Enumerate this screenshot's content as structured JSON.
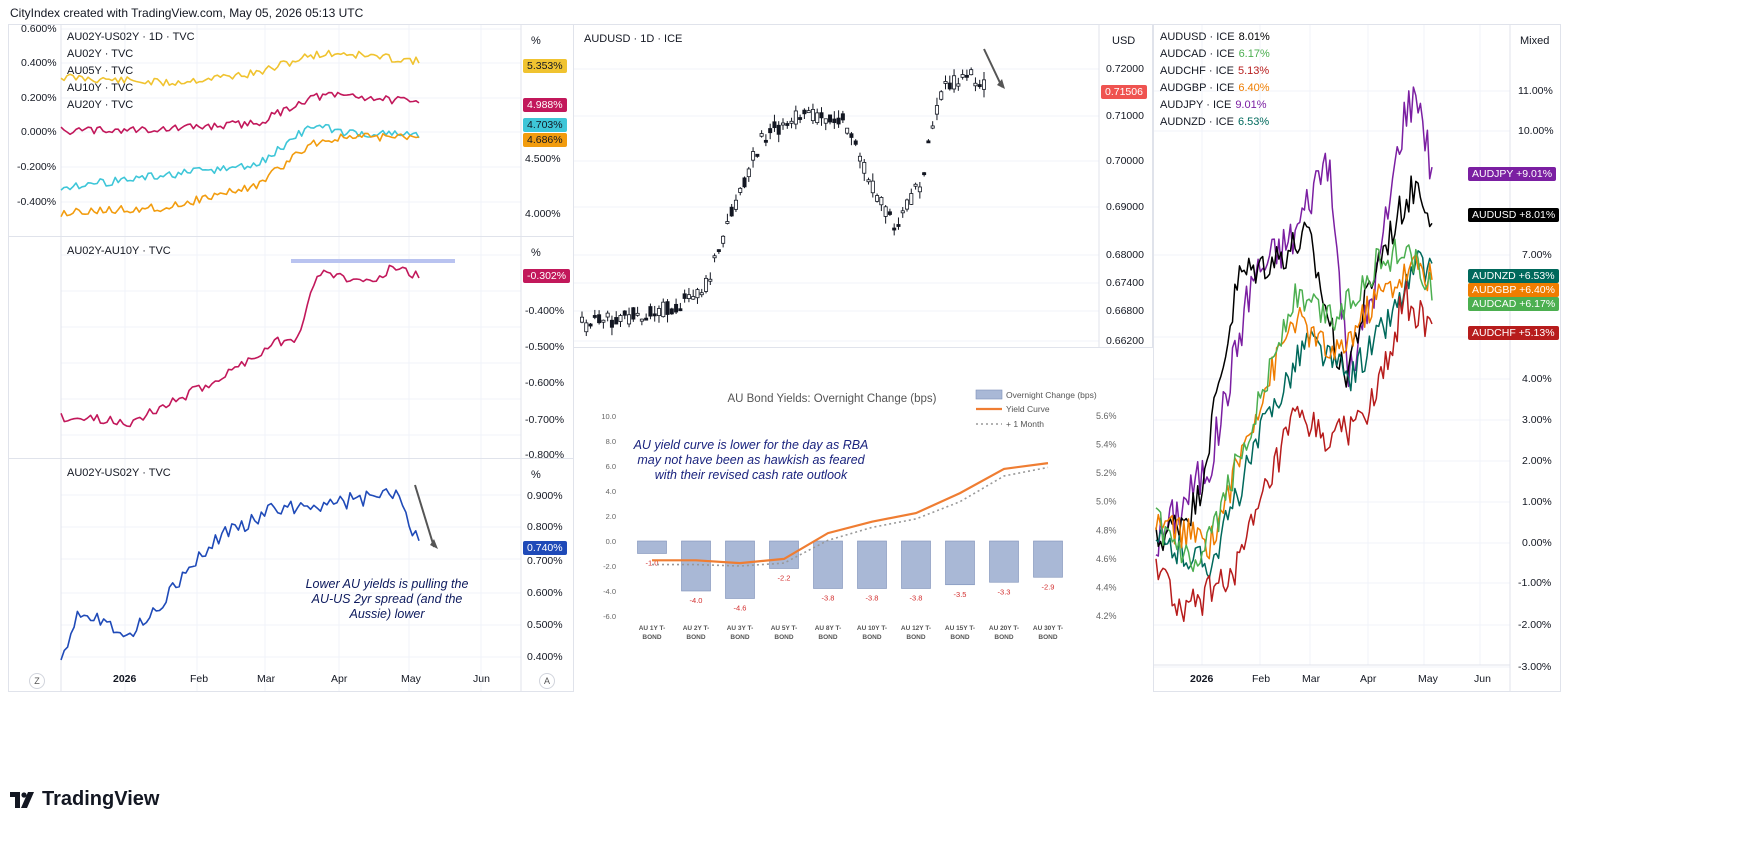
{
  "header": {
    "credit": "CityIndex created with TradingView.com, May 05, 2026 05:13 UTC"
  },
  "footer": {
    "brand": "TradingView",
    "btn_z": "Z",
    "btn_a": "A"
  },
  "colors": {
    "gold": "#f0c330",
    "crimson": "#c2185b",
    "teal": "#3ec6d8",
    "orange": "#f29c0e",
    "blue": "#1f4ab8",
    "purple": "#7b1fa2",
    "black": "#000000",
    "green": "#4caf50",
    "darkteal": "#00695c",
    "darkorange": "#ef7d00",
    "red": "#b71c1c",
    "accent": "#ef5350"
  },
  "panel1": {
    "legend": [
      {
        "name": "AU02Y-US02Y · 1D · TVC"
      },
      {
        "name": "AU02Y · TVC"
      },
      {
        "name": "AU05Y · TVC"
      },
      {
        "name": "AU10Y · TVC"
      },
      {
        "name": "AU20Y · TVC"
      }
    ],
    "left_ticks": [
      "0.600%",
      "0.400%",
      "0.200%",
      "0.000%",
      "-0.200%",
      "-0.400%"
    ],
    "right_ticks": [
      "4.500%",
      "4.000%"
    ],
    "unit": "%",
    "badges": [
      {
        "text": "5.353%",
        "color": "#f0c330",
        "fg": "#131722"
      },
      {
        "text": "4.988%",
        "color": "#c2185b",
        "fg": "#ffffff"
      },
      {
        "text": "4.703%",
        "color": "#3ec6d8",
        "fg": "#131722"
      },
      {
        "text": "4.686%",
        "color": "#f29c0e",
        "fg": "#131722"
      }
    ]
  },
  "panel2": {
    "legend": "AU02Y-AU10Y · TVC",
    "unit": "%",
    "right_ticks": [
      "-0.400%",
      "-0.500%",
      "-0.600%",
      "-0.700%",
      "-0.800%"
    ],
    "badge": {
      "text": "-0.302%",
      "color": "#c2185b"
    }
  },
  "panel3": {
    "legend": "AU02Y-US02Y · TVC",
    "unit": "%",
    "right_ticks": [
      "0.900%",
      "0.800%",
      "0.700%",
      "0.600%",
      "0.500%",
      "0.400%"
    ],
    "badge": {
      "text": "0.740%",
      "color": "#1f4ab8"
    },
    "note": "Lower AU yields is pulling the AU-US 2yr spread (and the Aussie) lower",
    "x_ticks": [
      "2026",
      "Feb",
      "Mar",
      "Apr",
      "May",
      "Jun"
    ]
  },
  "panel4": {
    "legend": "AUDUSD · 1D · ICE",
    "unit": "USD",
    "right_ticks": [
      "0.72000",
      "0.71000",
      "0.70000",
      "0.69000",
      "0.68000",
      "0.67400",
      "0.66800",
      "0.66200"
    ],
    "badge": {
      "text": "0.71506",
      "color": "#ef5350"
    }
  },
  "panel5": {
    "legend": [
      {
        "name": "AUDUSD · ICE",
        "value": "8.01%",
        "color": "#000000"
      },
      {
        "name": "AUDCAD · ICE",
        "value": "6.17%",
        "color": "#4caf50"
      },
      {
        "name": "AUDCHF · ICE",
        "value": "5.13%",
        "color": "#b71c1c"
      },
      {
        "name": "AUDGBP · ICE",
        "value": "6.40%",
        "color": "#ef7d00"
      },
      {
        "name": "AUDJPY · ICE",
        "value": "9.01%",
        "color": "#7b1fa2"
      },
      {
        "name": "AUDNZD · ICE",
        "value": "6.53%",
        "color": "#00695c"
      }
    ],
    "mode": "Mixed",
    "right_ticks": [
      "11.00%",
      "10.00%",
      "7.00%",
      "5.00%",
      "4.00%",
      "3.00%",
      "2.00%",
      "1.00%",
      "0.00%",
      "-1.00%",
      "-2.00%",
      "-3.00%"
    ],
    "badges": [
      {
        "name": "AUDJPY",
        "value": "+9.01%",
        "color": "#7b1fa2"
      },
      {
        "name": "AUDUSD",
        "value": "+8.01%",
        "color": "#000000"
      },
      {
        "name": "AUDNZD",
        "value": "+6.53%",
        "color": "#00695c"
      },
      {
        "name": "AUDGBP",
        "value": "+6.40%",
        "color": "#ef7d00"
      },
      {
        "name": "AUDCAD",
        "value": "+6.17%",
        "color": "#4caf50"
      },
      {
        "name": "AUDCHF",
        "value": "+5.13%",
        "color": "#b71c1c"
      }
    ],
    "x_ticks": [
      "2026",
      "Feb",
      "Mar",
      "Apr",
      "May",
      "Jun"
    ]
  },
  "chart_data": {
    "type": "bar",
    "title": "AU Bond Yields: Overnight Change (bps)",
    "note": "AU yield curve is lower for the day as RBA may not have been as hawkish as feared with their revised cash rate outlook",
    "categories": [
      "AU 1Y T-BOND",
      "AU 2Y T-BOND",
      "AU 3Y T-BOND",
      "AU 5Y T-BOND",
      "AU 8Y T-BOND",
      "AU 10Y T-BOND",
      "AU 12Y T-BOND",
      "AU 15Y T-BOND",
      "AU 20Y T-BOND",
      "AU 30Y T-BOND"
    ],
    "series": [
      {
        "name": "Overnight Change (bps)",
        "type": "bar",
        "axis": "left",
        "values": [
          -1.0,
          -4.0,
          -4.6,
          -2.2,
          -3.8,
          -3.8,
          -3.8,
          -3.5,
          -3.3,
          -2.9
        ],
        "labels": [
          "-1.0",
          "-4.0",
          "-4.6",
          "-2.2",
          "-3.8",
          "-3.8",
          "-3.8",
          "-3.5",
          "-3.3",
          "-2.9"
        ]
      },
      {
        "name": "Yield Curve",
        "type": "line",
        "axis": "right",
        "values": [
          4.59,
          4.59,
          4.57,
          4.6,
          4.78,
          4.86,
          4.92,
          5.06,
          5.23,
          5.27
        ]
      },
      {
        "name": "+ 1 Month",
        "type": "line",
        "axis": "right",
        "dashed": true,
        "values": [
          4.56,
          4.56,
          4.55,
          4.57,
          4.73,
          4.82,
          4.88,
          5.0,
          5.18,
          5.24
        ]
      }
    ],
    "ylim_left": [
      -6.0,
      10.0
    ],
    "yticks_left": [
      "10.0",
      "8.0",
      "6.0",
      "4.0",
      "2.0",
      "0.0",
      "-2.0",
      "-4.0",
      "-6.0"
    ],
    "ylim_right": [
      4.2,
      5.6
    ],
    "yticks_right": [
      "5.6%",
      "5.4%",
      "5.2%",
      "5.0%",
      "4.8%",
      "4.6%",
      "4.4%",
      "4.2%"
    ],
    "legend_position": "top-right"
  }
}
